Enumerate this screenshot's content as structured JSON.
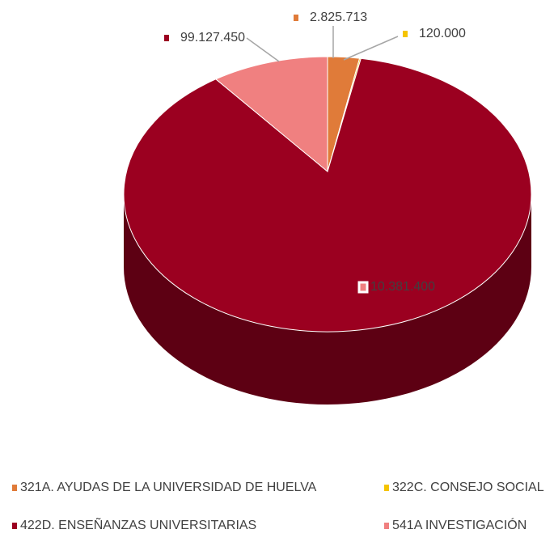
{
  "chart_data": {
    "type": "pie3d",
    "series": [
      {
        "name": "321A. AYUDAS DE LA UNIVERSIDAD DE HUELVA",
        "color": "#e07b39",
        "values": [
          2825713
        ],
        "value_labels": [
          "2.825.713"
        ]
      },
      {
        "name": "322C. CONSEJO SOCIAL",
        "color": "#f5c400",
        "values": [
          120000
        ],
        "value_labels": [
          "120.000"
        ]
      },
      {
        "name": "422D. ENSEÑANZAS UNIVERSITARIAS",
        "color": "#9b0020",
        "values": [
          99127450
        ],
        "value_labels": [
          "99.127.450"
        ]
      },
      {
        "name": "541A INVESTIGACIÓN",
        "color": "#f08080",
        "values": [
          10381400
        ],
        "value_labels": [
          "10.381.400"
        ]
      }
    ]
  }
}
